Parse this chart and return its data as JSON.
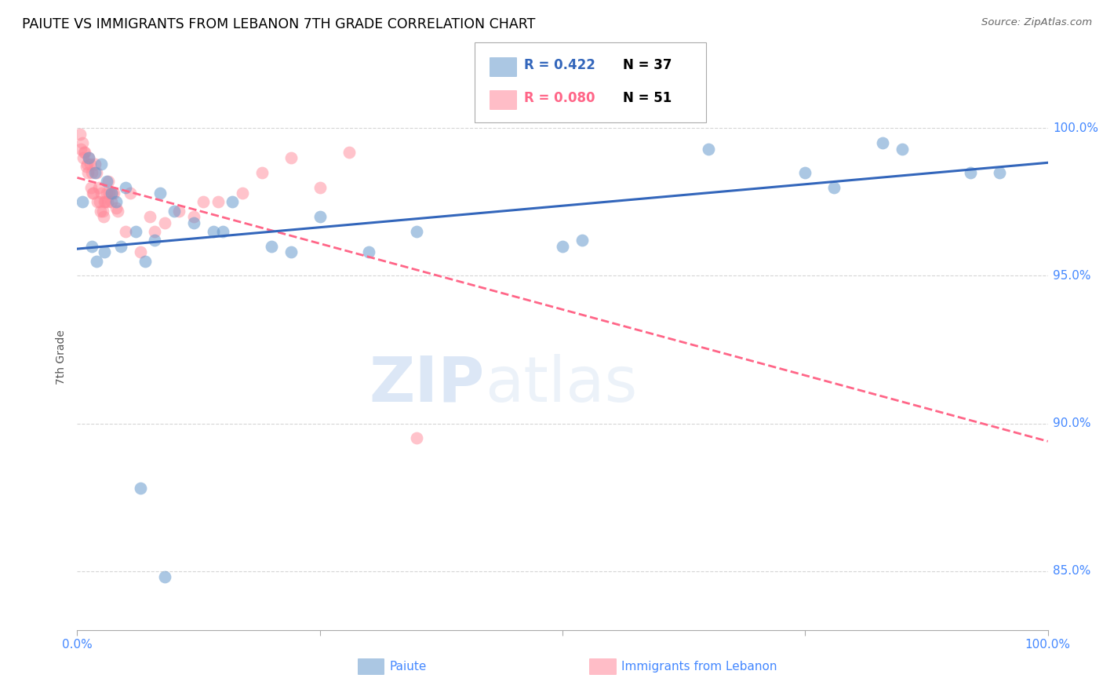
{
  "title": "PAIUTE VS IMMIGRANTS FROM LEBANON 7TH GRADE CORRELATION CHART",
  "source": "Source: ZipAtlas.com",
  "ylabel": "7th Grade",
  "legend_blue_r": "R = 0.422",
  "legend_blue_n": "N = 37",
  "legend_pink_r": "R = 0.080",
  "legend_pink_n": "N = 51",
  "color_blue": "#6699CC",
  "color_pink": "#FF8899",
  "color_blue_line": "#3366BB",
  "color_pink_line": "#FF6688",
  "color_axis_labels": "#4488FF",
  "watermark_zip": "ZIP",
  "watermark_atlas": "atlas",
  "xlim": [
    0.0,
    100.0
  ],
  "ylim": [
    83.0,
    101.5
  ],
  "yticks": [
    85.0,
    90.0,
    95.0,
    100.0
  ],
  "ytick_labels": [
    "85.0%",
    "90.0%",
    "95.0%",
    "100.0%"
  ],
  "blue_x": [
    0.5,
    1.2,
    1.8,
    2.5,
    3.0,
    3.5,
    4.0,
    5.0,
    6.0,
    7.0,
    8.5,
    10.0,
    12.0,
    14.0,
    16.0,
    20.0,
    25.0,
    30.0,
    35.0,
    50.0,
    52.0,
    65.0,
    75.0,
    78.0,
    83.0,
    85.0,
    92.0,
    95.0,
    1.5,
    2.0,
    2.8,
    4.5,
    8.0,
    15.0,
    22.0,
    6.5,
    9.0
  ],
  "blue_y": [
    97.5,
    99.0,
    98.5,
    98.8,
    98.2,
    97.8,
    97.5,
    98.0,
    96.5,
    95.5,
    97.8,
    97.2,
    96.8,
    96.5,
    97.5,
    96.0,
    97.0,
    95.8,
    96.5,
    96.0,
    96.2,
    99.3,
    98.5,
    98.0,
    99.5,
    99.3,
    98.5,
    98.5,
    96.0,
    95.5,
    95.8,
    96.0,
    96.2,
    96.5,
    95.8,
    87.8,
    84.8
  ],
  "pink_x": [
    0.3,
    0.5,
    0.8,
    1.0,
    1.2,
    1.5,
    1.8,
    2.0,
    2.2,
    2.5,
    2.8,
    3.0,
    3.2,
    3.5,
    0.4,
    0.6,
    0.9,
    1.1,
    1.4,
    1.7,
    2.1,
    2.4,
    2.7,
    3.1,
    3.8,
    4.2,
    5.5,
    7.5,
    9.0,
    10.5,
    12.0,
    14.5,
    17.0,
    22.0,
    28.0,
    0.7,
    1.3,
    1.6,
    2.3,
    2.6,
    2.9,
    3.3,
    3.6,
    4.0,
    5.0,
    6.5,
    8.0,
    35.0,
    13.0,
    19.0,
    25.0
  ],
  "pink_y": [
    99.8,
    99.5,
    99.2,
    98.8,
    99.0,
    98.5,
    98.8,
    98.5,
    98.0,
    97.8,
    97.5,
    97.8,
    98.2,
    97.5,
    99.3,
    99.0,
    98.7,
    98.5,
    98.0,
    97.8,
    97.5,
    97.2,
    97.0,
    97.5,
    97.8,
    97.2,
    97.8,
    97.0,
    96.8,
    97.2,
    97.0,
    97.5,
    97.8,
    99.0,
    99.2,
    99.2,
    98.8,
    97.8,
    97.5,
    97.2,
    97.5,
    97.8,
    97.8,
    97.3,
    96.5,
    95.8,
    96.5,
    89.5,
    97.5,
    98.5,
    98.0
  ]
}
